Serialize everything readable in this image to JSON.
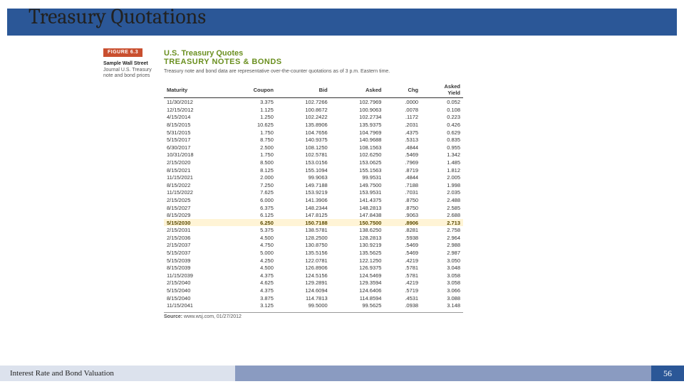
{
  "slide": {
    "title": "Treasury Quotations",
    "footer_left": "Interest Rate and Bond Valuation",
    "page_number": "56"
  },
  "figure": {
    "badge": "FIGURE 6.3",
    "heading1": "U.S. Treasury Quotes",
    "heading2": "TREASURY NOTES & BONDS",
    "subhead": "Treasury note and bond data are representative over-the-counter quotations as of 3 p.m. Eastern time.",
    "sidebar_bold": "Sample Wall Street",
    "sidebar_rest": "Journal U.S. Treasury note and bond prices",
    "source_label": "Source:",
    "source_text": "www.wsj.com, 01/27/2012",
    "columns": [
      "Maturity",
      "Coupon",
      "Bid",
      "Asked",
      "Chg",
      "Asked Yield"
    ],
    "col_align": [
      "l",
      "r",
      "r",
      "r",
      "r",
      "r"
    ],
    "highlight_row_index": 17,
    "rows": [
      [
        "11/30/2012",
        "3.375",
        "102.7266",
        "102.7969",
        ".0000",
        "0.052"
      ],
      [
        "12/15/2012",
        "1.125",
        "100.8672",
        "100.9063",
        ".0078",
        "0.108"
      ],
      [
        "4/15/2014",
        "1.250",
        "102.2422",
        "102.2734",
        ".1172",
        "0.223"
      ],
      [
        "8/15/2015",
        "10.625",
        "135.8906",
        "135.9375",
        ".2031",
        "0.426"
      ],
      [
        "5/31/2015",
        "1.750",
        "104.7656",
        "104.7969",
        ".4375",
        "0.629"
      ],
      [
        "5/15/2017",
        "8.750",
        "140.9375",
        "140.9688",
        ".5313",
        "0.835"
      ],
      [
        "6/30/2017",
        "2.500",
        "108.1250",
        "108.1563",
        ".4844",
        "0.955"
      ],
      [
        "10/31/2018",
        "1.750",
        "102.5781",
        "102.6250",
        ".5469",
        "1.342"
      ],
      [
        "2/15/2020",
        "8.500",
        "153.0156",
        "153.0625",
        ".7969",
        "1.485"
      ],
      [
        "8/15/2021",
        "8.125",
        "155.1094",
        "155.1563",
        ".8719",
        "1.812"
      ],
      [
        "11/15/2021",
        "2.000",
        "99.9063",
        "99.9531",
        ".4844",
        "2.005"
      ],
      [
        "8/15/2022",
        "7.250",
        "149.7188",
        "149.7500",
        ".7188",
        "1.998"
      ],
      [
        "11/15/2022",
        "7.625",
        "153.9219",
        "153.9531",
        ".7031",
        "2.035"
      ],
      [
        "2/15/2025",
        "6.000",
        "141.3906",
        "141.4375",
        ".8750",
        "2.488"
      ],
      [
        "8/15/2027",
        "6.375",
        "148.2344",
        "148.2813",
        ".8750",
        "2.585"
      ],
      [
        "8/15/2029",
        "6.125",
        "147.8125",
        "147.8438",
        ".9063",
        "2.688"
      ],
      [
        "5/15/2030",
        "6.250",
        "150.7188",
        "150.7500",
        ".8906",
        "2.713"
      ],
      [
        "2/15/2031",
        "5.375",
        "138.5781",
        "138.6250",
        ".8281",
        "2.758"
      ],
      [
        "2/15/2036",
        "4.500",
        "128.2500",
        "128.2813",
        ".5938",
        "2.964"
      ],
      [
        "2/15/2037",
        "4.750",
        "130.8750",
        "130.9219",
        ".5469",
        "2.988"
      ],
      [
        "5/15/2037",
        "5.000",
        "135.5156",
        "135.5625",
        ".5469",
        "2.987"
      ],
      [
        "5/15/2039",
        "4.250",
        "122.0781",
        "122.1250",
        ".4219",
        "3.050"
      ],
      [
        "8/15/2039",
        "4.500",
        "126.8906",
        "126.9375",
        ".5781",
        "3.048"
      ],
      [
        "11/15/2039",
        "4.375",
        "124.5156",
        "124.5469",
        ".5781",
        "3.058"
      ],
      [
        "2/15/2040",
        "4.625",
        "129.2891",
        "129.3594",
        ".4219",
        "3.058"
      ],
      [
        "5/15/2040",
        "4.375",
        "124.6094",
        "124.6406",
        ".5719",
        "3.066"
      ],
      [
        "8/15/2040",
        "3.875",
        "114.7813",
        "114.8594",
        ".4531",
        "3.088"
      ],
      [
        "11/15/2041",
        "3.125",
        "99.5000",
        "99.5625",
        ".0938",
        "3.148"
      ]
    ]
  },
  "colors": {
    "header_bar": "#2b5797",
    "footer_left_bg": "#dce2ed",
    "footer_mid_bg": "#8a9bc1",
    "footer_right_bg": "#2b5797",
    "badge_bg": "#c94f2f",
    "heading_color": "#6a8f1f",
    "highlight_bg": "#fff4d6"
  }
}
